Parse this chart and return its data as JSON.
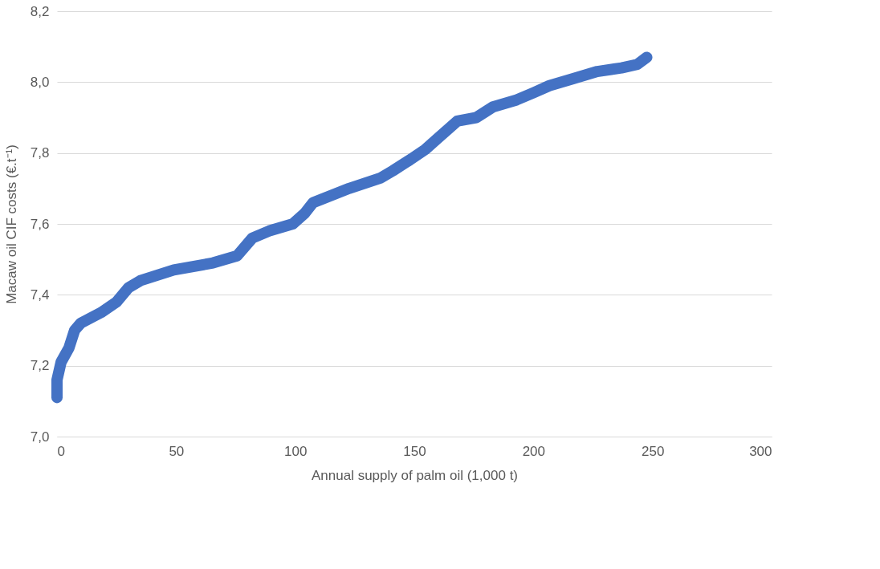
{
  "chart_data": {
    "type": "line",
    "xlabel": "Annual supply  of palm oil (1,000 t)",
    "ylabel": "Macaw oil CIF costs (€.t⁻¹)",
    "x": [
      0,
      0,
      1.7,
      5,
      7.4,
      10,
      18.5,
      25,
      30,
      35,
      49,
      65.5,
      75.6,
      82,
      89,
      99,
      104,
      107.5,
      122.6,
      136,
      141,
      148,
      154.6,
      159.6,
      168,
      176,
      183,
      193,
      200,
      206.7,
      216.7,
      226.8,
      237,
      243.6,
      247.6
    ],
    "series": [
      {
        "color": "#4472c4",
        "values": [
          7.11,
          7.16,
          7.21,
          7.25,
          7.3,
          7.32,
          7.35,
          7.38,
          7.42,
          7.44,
          7.47,
          7.49,
          7.51,
          7.56,
          7.58,
          7.6,
          7.63,
          7.66,
          7.7,
          7.73,
          7.75,
          7.78,
          7.81,
          7.84,
          7.89,
          7.9,
          7.93,
          7.95,
          7.97,
          7.99,
          8.01,
          8.03,
          8.04,
          8.05,
          8.07
        ]
      }
    ],
    "xlim": [
      0,
      300
    ],
    "xticks": [
      0,
      50,
      100,
      150,
      200,
      250,
      300
    ],
    "ylim": [
      7.0,
      8.2
    ],
    "yticks": [
      {
        "value": 7.0,
        "label": "7,0"
      },
      {
        "value": 7.2,
        "label": "7,2"
      },
      {
        "value": 7.4,
        "label": "7,4"
      },
      {
        "value": 7.6,
        "label": "7,6"
      },
      {
        "value": 7.8,
        "label": "7,8"
      },
      {
        "value": 8.0,
        "label": "8,0"
      },
      {
        "value": 8.2,
        "label": "8,2"
      }
    ],
    "grid": "y",
    "marker": "none",
    "line_style": "solid"
  }
}
